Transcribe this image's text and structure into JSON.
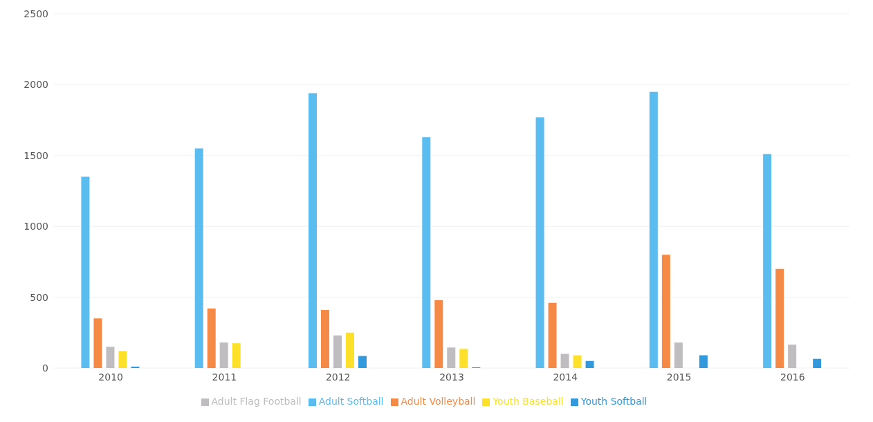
{
  "chart_data": {
    "type": "bar",
    "categories": [
      "2010",
      "2011",
      "2012",
      "2013",
      "2014",
      "2015",
      "2016"
    ],
    "series": [
      {
        "name": "Adult Softball",
        "color": "#5bbcf0",
        "values": [
          1350,
          1550,
          1940,
          1630,
          1770,
          1950,
          1510
        ]
      },
      {
        "name": "Adult Volleyball",
        "color": "#f58a46",
        "values": [
          350,
          420,
          410,
          480,
          460,
          800,
          700
        ]
      },
      {
        "name": "Adult Flag Football",
        "color": "#c0bdc0",
        "values": [
          150,
          180,
          230,
          145,
          100,
          180,
          165
        ]
      },
      {
        "name": "Youth Baseball",
        "color": "#fde02a",
        "values": [
          120,
          175,
          250,
          135,
          90,
          0,
          0
        ]
      },
      {
        "name": "Youth Softball",
        "color": "#3399dd",
        "values": [
          10,
          0,
          85,
          5,
          50,
          90,
          65
        ]
      }
    ],
    "ylim": [
      0,
      2500
    ],
    "yticks": [
      0,
      500,
      1000,
      1500,
      2000,
      2500
    ],
    "grid": "y",
    "legend": "bottom"
  }
}
